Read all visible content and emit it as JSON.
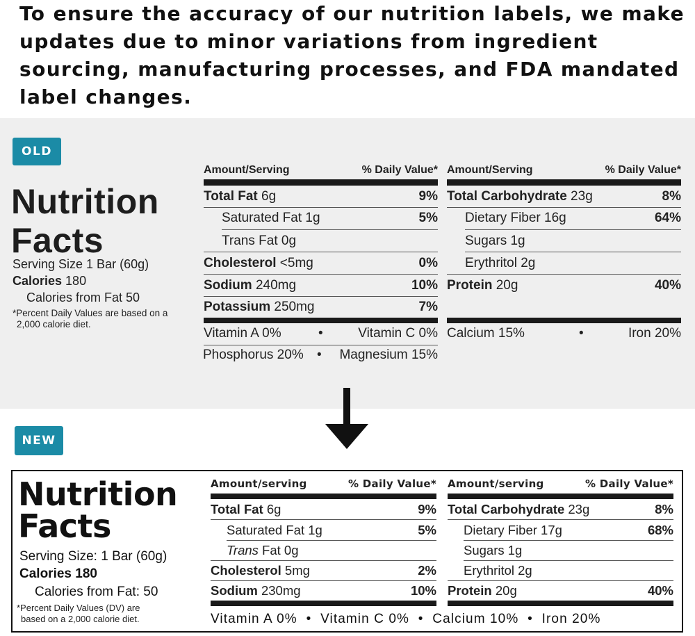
{
  "headline": "To ensure the accuracy of our nutrition labels, we make updates due to minor variations from ingredient sourcing, manufacturing processes, and FDA mandated label changes.",
  "old": {
    "badge": "OLD",
    "title_line1": "Nutrition",
    "title_line2": "Facts",
    "serving_size": "Serving Size 1 Bar (60g)",
    "calories_label": "Calories",
    "calories_value": " 180",
    "calories_from_fat": "Calories from Fat 50",
    "dv_note_line1": "*Percent Daily Values are based on a",
    "dv_note_line2": "2,000 calorie diet.",
    "left": {
      "header_amount": "Amount/Serving",
      "header_dv": "% Daily Value*",
      "rows": [
        {
          "name": "Total Fat",
          "amount": " 6g",
          "dv": "9%"
        },
        {
          "name": "Saturated Fat 1g",
          "amount": "",
          "dv": "5%"
        },
        {
          "name": "Trans Fat 0g",
          "amount": "",
          "dv": ""
        },
        {
          "name": "Cholesterol",
          "amount": " <5mg",
          "dv": "0%"
        },
        {
          "name": "Sodium",
          "amount": " 240mg",
          "dv": "10%"
        },
        {
          "name": "Potassium",
          "amount": " 250mg",
          "dv": "7%"
        }
      ],
      "vitamin_a": "Vitamin A 0%",
      "vitamin_c": "Vitamin C 0%",
      "phosphorus": "Phosphorus 20%",
      "magnesium": "Magnesium 15%"
    },
    "right": {
      "header_amount": "Amount/Serving",
      "header_dv": "% Daily Value*",
      "rows": [
        {
          "name": "Total Carbohydrate",
          "amount": " 23g",
          "dv": "8%"
        },
        {
          "name": "Dietary Fiber 16g",
          "amount": "",
          "dv": "64%"
        },
        {
          "name": "Sugars 1g",
          "amount": "",
          "dv": ""
        },
        {
          "name": "Erythritol 2g",
          "amount": "",
          "dv": ""
        },
        {
          "name": "Protein",
          "amount": " 20g",
          "dv": "40%"
        }
      ],
      "calcium": "Calcium 15%",
      "iron": "Iron 20%"
    },
    "bullet": "•"
  },
  "new": {
    "badge": "NEW",
    "title_line1": "Nutrition",
    "title_line2": "Facts",
    "serving_size": "Serving Size: 1 Bar (60g)",
    "calories": "Calories 180",
    "calories_from_fat": "Calories from Fat: 50",
    "dv_note_line1": "*Percent Daily Values (DV) are",
    "dv_note_line2": "based on a 2,000 calorie diet.",
    "left": {
      "header_amount": "Amount/serving",
      "header_dv": "% Daily Value*",
      "rows": [
        {
          "name": "Total Fat",
          "amount": " 6g",
          "dv": "9%"
        },
        {
          "name": "Saturated Fat 1g",
          "amount": "",
          "dv": "5%"
        },
        {
          "name": "Trans",
          "amount": " Fat 0g",
          "dv": ""
        },
        {
          "name": "Cholesterol",
          "amount": " 5mg",
          "dv": "2%"
        },
        {
          "name": "Sodium",
          "amount": " 230mg",
          "dv": "10%"
        }
      ]
    },
    "right": {
      "header_amount": "Amount/serving",
      "header_dv": "% Daily Value*",
      "rows": [
        {
          "name": "Total Carbohydrate",
          "amount": " 23g",
          "dv": "8%"
        },
        {
          "name": "Dietary Fiber 17g",
          "amount": "",
          "dv": "68%"
        },
        {
          "name": "Sugars 1g",
          "amount": "",
          "dv": ""
        },
        {
          "name": "Erythritol 2g",
          "amount": "",
          "dv": ""
        },
        {
          "name": "Protein",
          "amount": " 20g",
          "dv": "40%"
        }
      ]
    },
    "vitamins_line": "Vitamin A 0%  •  Vitamin C 0%  •  Calcium 10%  •  Iron 20%"
  },
  "arrow_icon": "arrow-down-icon",
  "colors": {
    "badge": "#1b8ba6",
    "old_panel": "#efefef",
    "text": "#1a1a1a"
  }
}
